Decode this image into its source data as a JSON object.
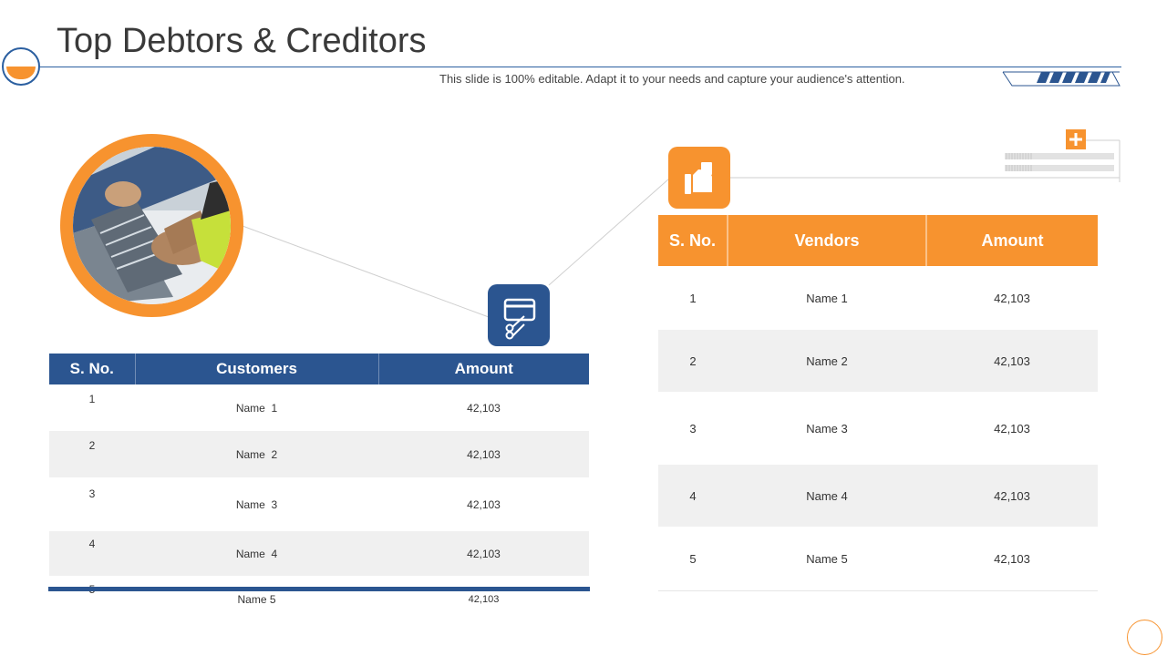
{
  "header": {
    "title": "Top Debtors & Creditors",
    "subtitle": "This slide is 100% editable. Adapt it to your needs and capture your audience's attention."
  },
  "colors": {
    "accent_orange": "#f7932f",
    "accent_blue": "#2b5590",
    "row_alt": "#f0f0f0"
  },
  "icons": {
    "customers_tile": "card-scissors-icon",
    "vendors_tile": "hand-money-icon",
    "plus": "plus-icon"
  },
  "customers_table": {
    "headers": [
      "S. No.",
      "Customers",
      "Amount"
    ],
    "rows": [
      {
        "sno": "1",
        "name": "Name  1",
        "amount": "42,103"
      },
      {
        "sno": "2",
        "name": "Name  2",
        "amount": "42,103"
      },
      {
        "sno": "3",
        "name": "Name  3",
        "amount": "42,103"
      },
      {
        "sno": "4",
        "name": "Name  4",
        "amount": "42,103"
      },
      {
        "sno": "5",
        "name": "Name 5",
        "amount": "42,103"
      }
    ]
  },
  "vendors_table": {
    "headers": [
      "S. No.",
      "Vendors",
      "Amount"
    ],
    "rows": [
      {
        "sno": "1",
        "name": "Name 1",
        "amount": "42,103"
      },
      {
        "sno": "2",
        "name": "Name 2",
        "amount": "42,103"
      },
      {
        "sno": "3",
        "name": "Name 3",
        "amount": "42,103"
      },
      {
        "sno": "4",
        "name": "Name 4",
        "amount": "42,103"
      },
      {
        "sno": "5",
        "name": "Name 5",
        "amount": "42,103"
      }
    ]
  }
}
